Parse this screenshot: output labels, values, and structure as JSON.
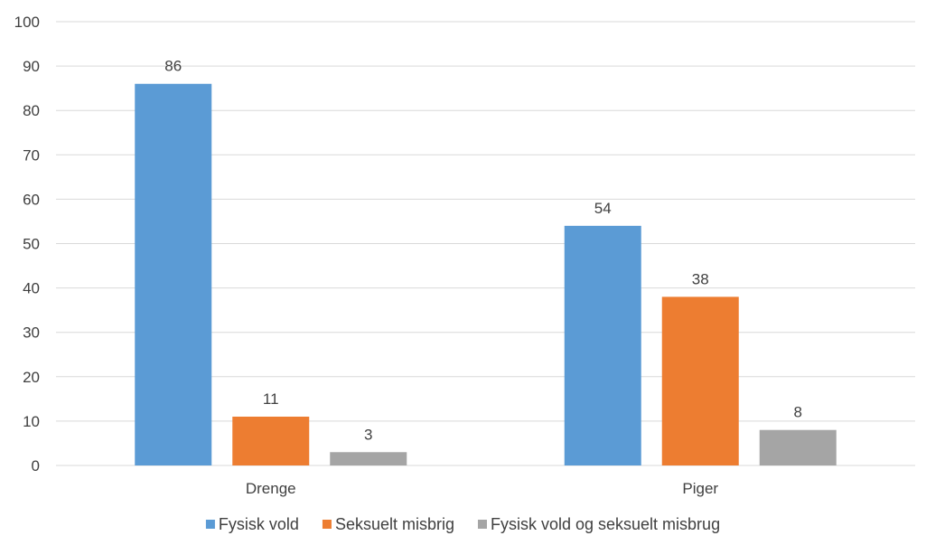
{
  "chart_data": {
    "type": "bar",
    "categories": [
      "Drenge",
      "Piger"
    ],
    "series": [
      {
        "name": "Fysisk vold",
        "color": "#5B9BD5",
        "values": [
          86,
          54
        ]
      },
      {
        "name": "Seksuelt misbrig",
        "color": "#ED7D31",
        "values": [
          11,
          38
        ]
      },
      {
        "name": "Fysisk vold og seksuelt misbrug",
        "color": "#A5A5A5",
        "values": [
          3,
          8
        ]
      }
    ],
    "ylim": [
      0,
      100
    ],
    "yticks": [
      0,
      10,
      20,
      30,
      40,
      50,
      60,
      70,
      80,
      90,
      100
    ],
    "grid": true,
    "legend_position": "bottom",
    "data_labels": true
  }
}
